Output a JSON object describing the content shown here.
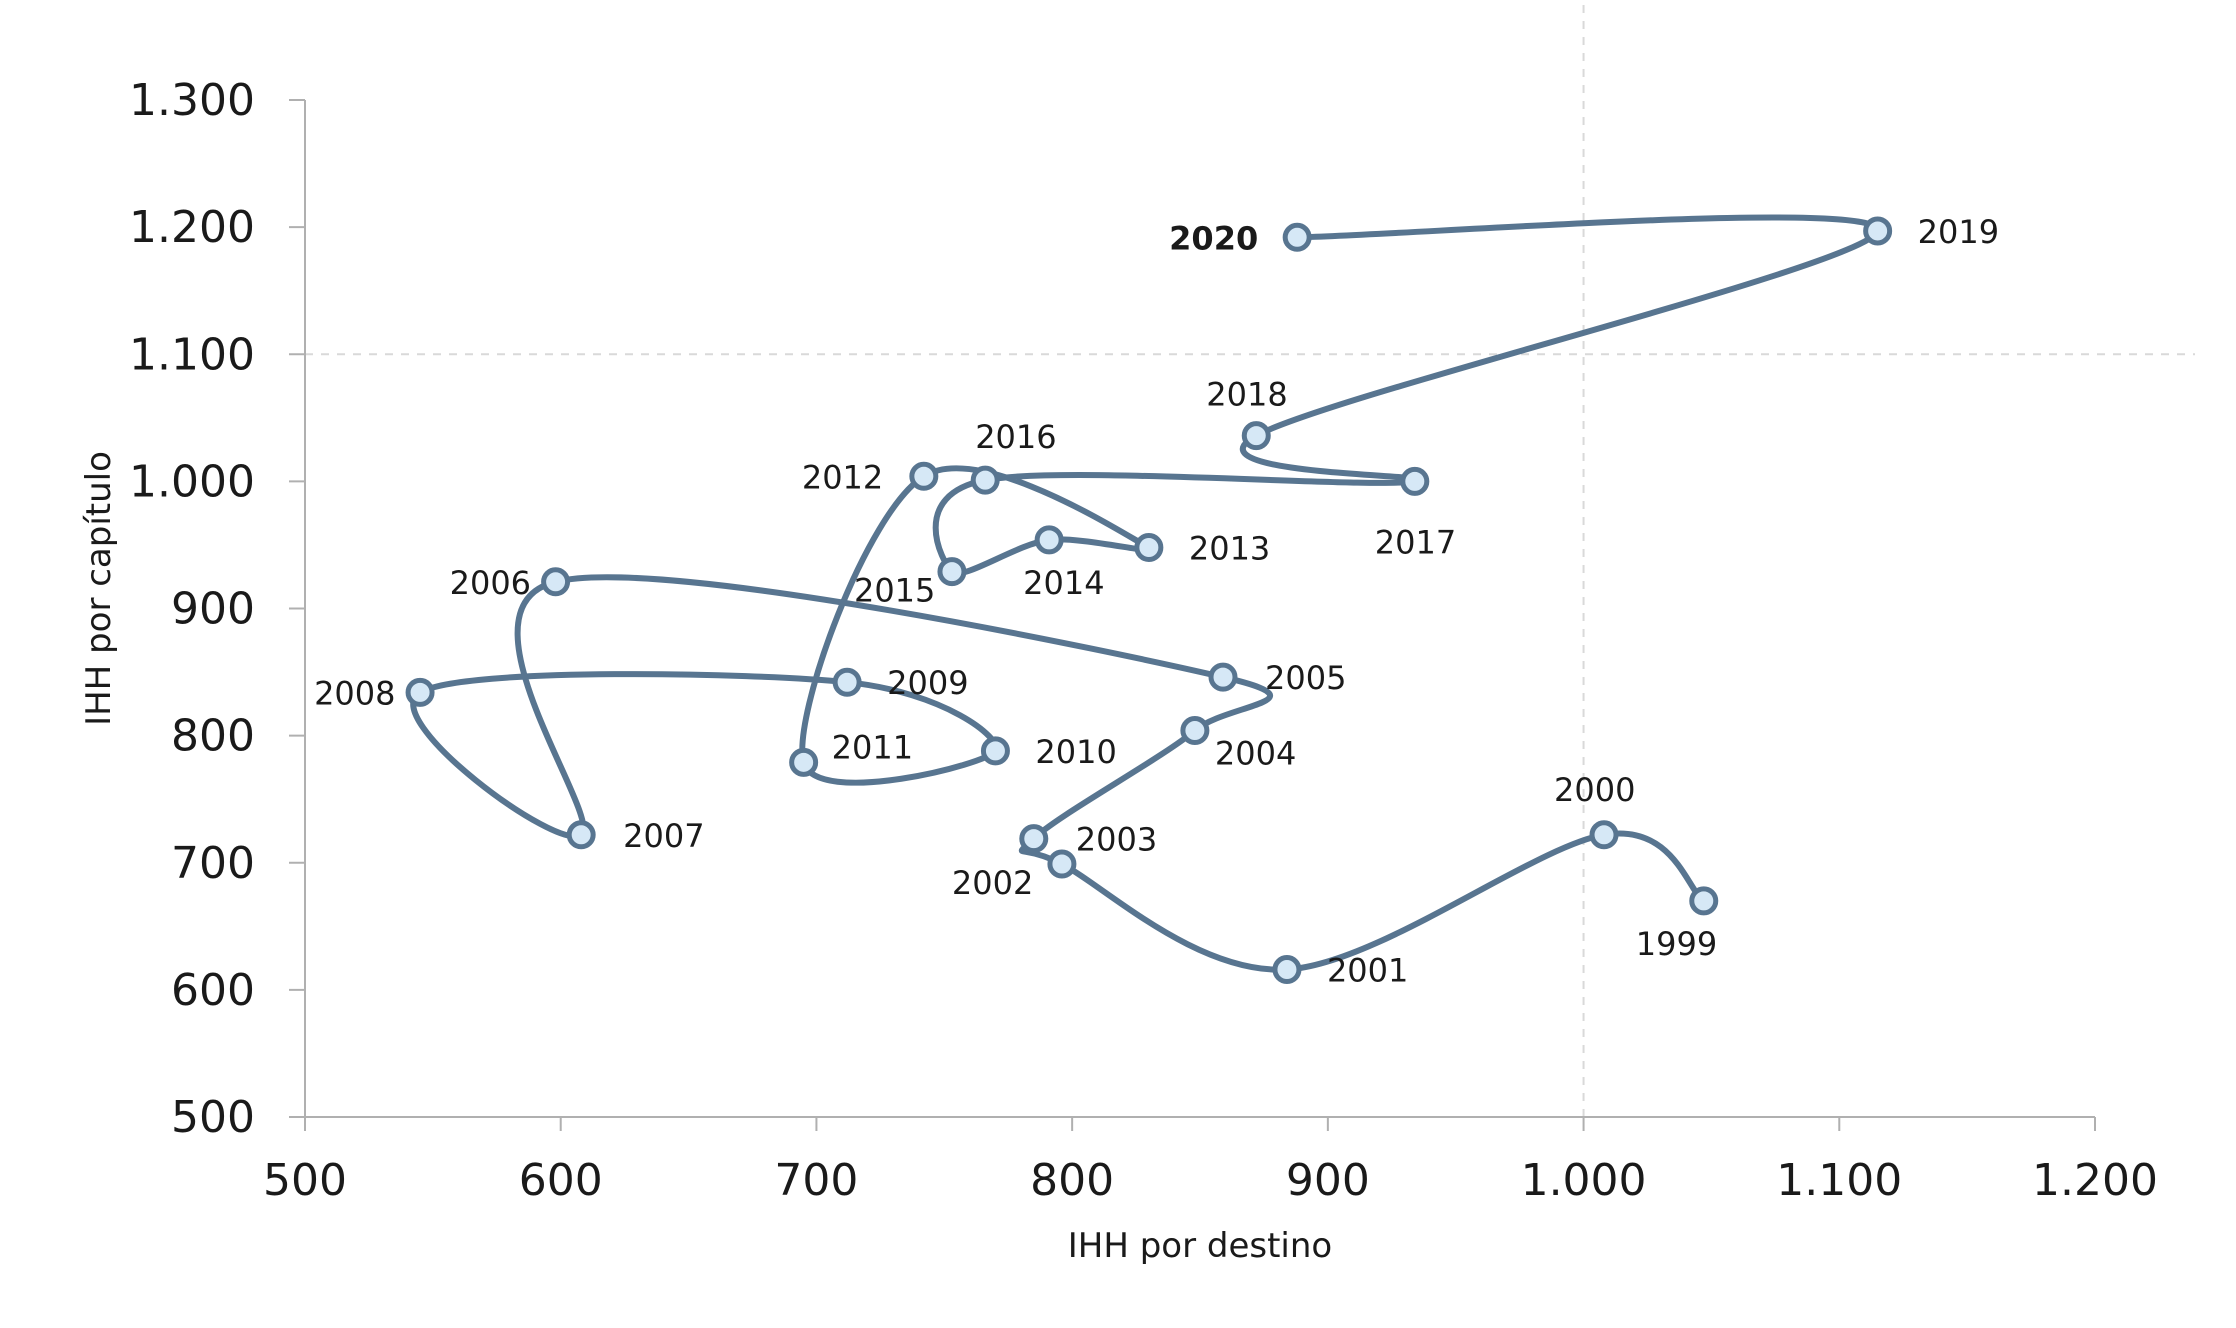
{
  "chart_data": {
    "type": "scatter",
    "xlabel": "IHH por destino",
    "ylabel": "IHH por capítulo",
    "xlim": [
      500,
      1200
    ],
    "ylim": [
      500,
      1300
    ],
    "x_ticks": [
      500,
      600,
      700,
      800,
      900,
      1000,
      1100,
      1200
    ],
    "y_ticks": [
      500,
      600,
      700,
      800,
      900,
      1000,
      1100,
      1200,
      1300
    ],
    "x_tick_labels": [
      "500",
      "600",
      "700",
      "800",
      "900",
      "1.000",
      "1.100",
      "1.200"
    ],
    "y_tick_labels": [
      "500",
      "600",
      "700",
      "800",
      "900",
      "1.000",
      "1.100",
      "1.200",
      "1.300"
    ],
    "reference_lines": {
      "x": 1000,
      "y": 1100
    },
    "grid": false,
    "connected": true,
    "colors": {
      "line": "#587590",
      "marker_fill": "#d6e8f6",
      "marker_stroke": "#587590",
      "reference": "#d9d9d9",
      "axis": "#b0b0b0"
    },
    "points": [
      {
        "label": "1999",
        "x": 1047,
        "y": 670
      },
      {
        "label": "2000",
        "x": 1008,
        "y": 722
      },
      {
        "label": "2001",
        "x": 884,
        "y": 616
      },
      {
        "label": "2002",
        "x": 796,
        "y": 699
      },
      {
        "label": "2003",
        "x": 785,
        "y": 719
      },
      {
        "label": "2004",
        "x": 848,
        "y": 804
      },
      {
        "label": "2005",
        "x": 859,
        "y": 846
      },
      {
        "label": "2006",
        "x": 598,
        "y": 921
      },
      {
        "label": "2007",
        "x": 608,
        "y": 722
      },
      {
        "label": "2008",
        "x": 545,
        "y": 834
      },
      {
        "label": "2009",
        "x": 712,
        "y": 842
      },
      {
        "label": "2010",
        "x": 770,
        "y": 788
      },
      {
        "label": "2011",
        "x": 695,
        "y": 779
      },
      {
        "label": "2012",
        "x": 742,
        "y": 1004
      },
      {
        "label": "2013",
        "x": 830,
        "y": 948
      },
      {
        "label": "2014",
        "x": 791,
        "y": 954
      },
      {
        "label": "2015",
        "x": 753,
        "y": 929
      },
      {
        "label": "2016",
        "x": 766,
        "y": 1001
      },
      {
        "label": "2017",
        "x": 934,
        "y": 1000
      },
      {
        "label": "2018",
        "x": 872,
        "y": 1036
      },
      {
        "label": "2019",
        "x": 1115,
        "y": 1197
      },
      {
        "label": "2020",
        "x": 888,
        "y": 1192
      }
    ]
  }
}
